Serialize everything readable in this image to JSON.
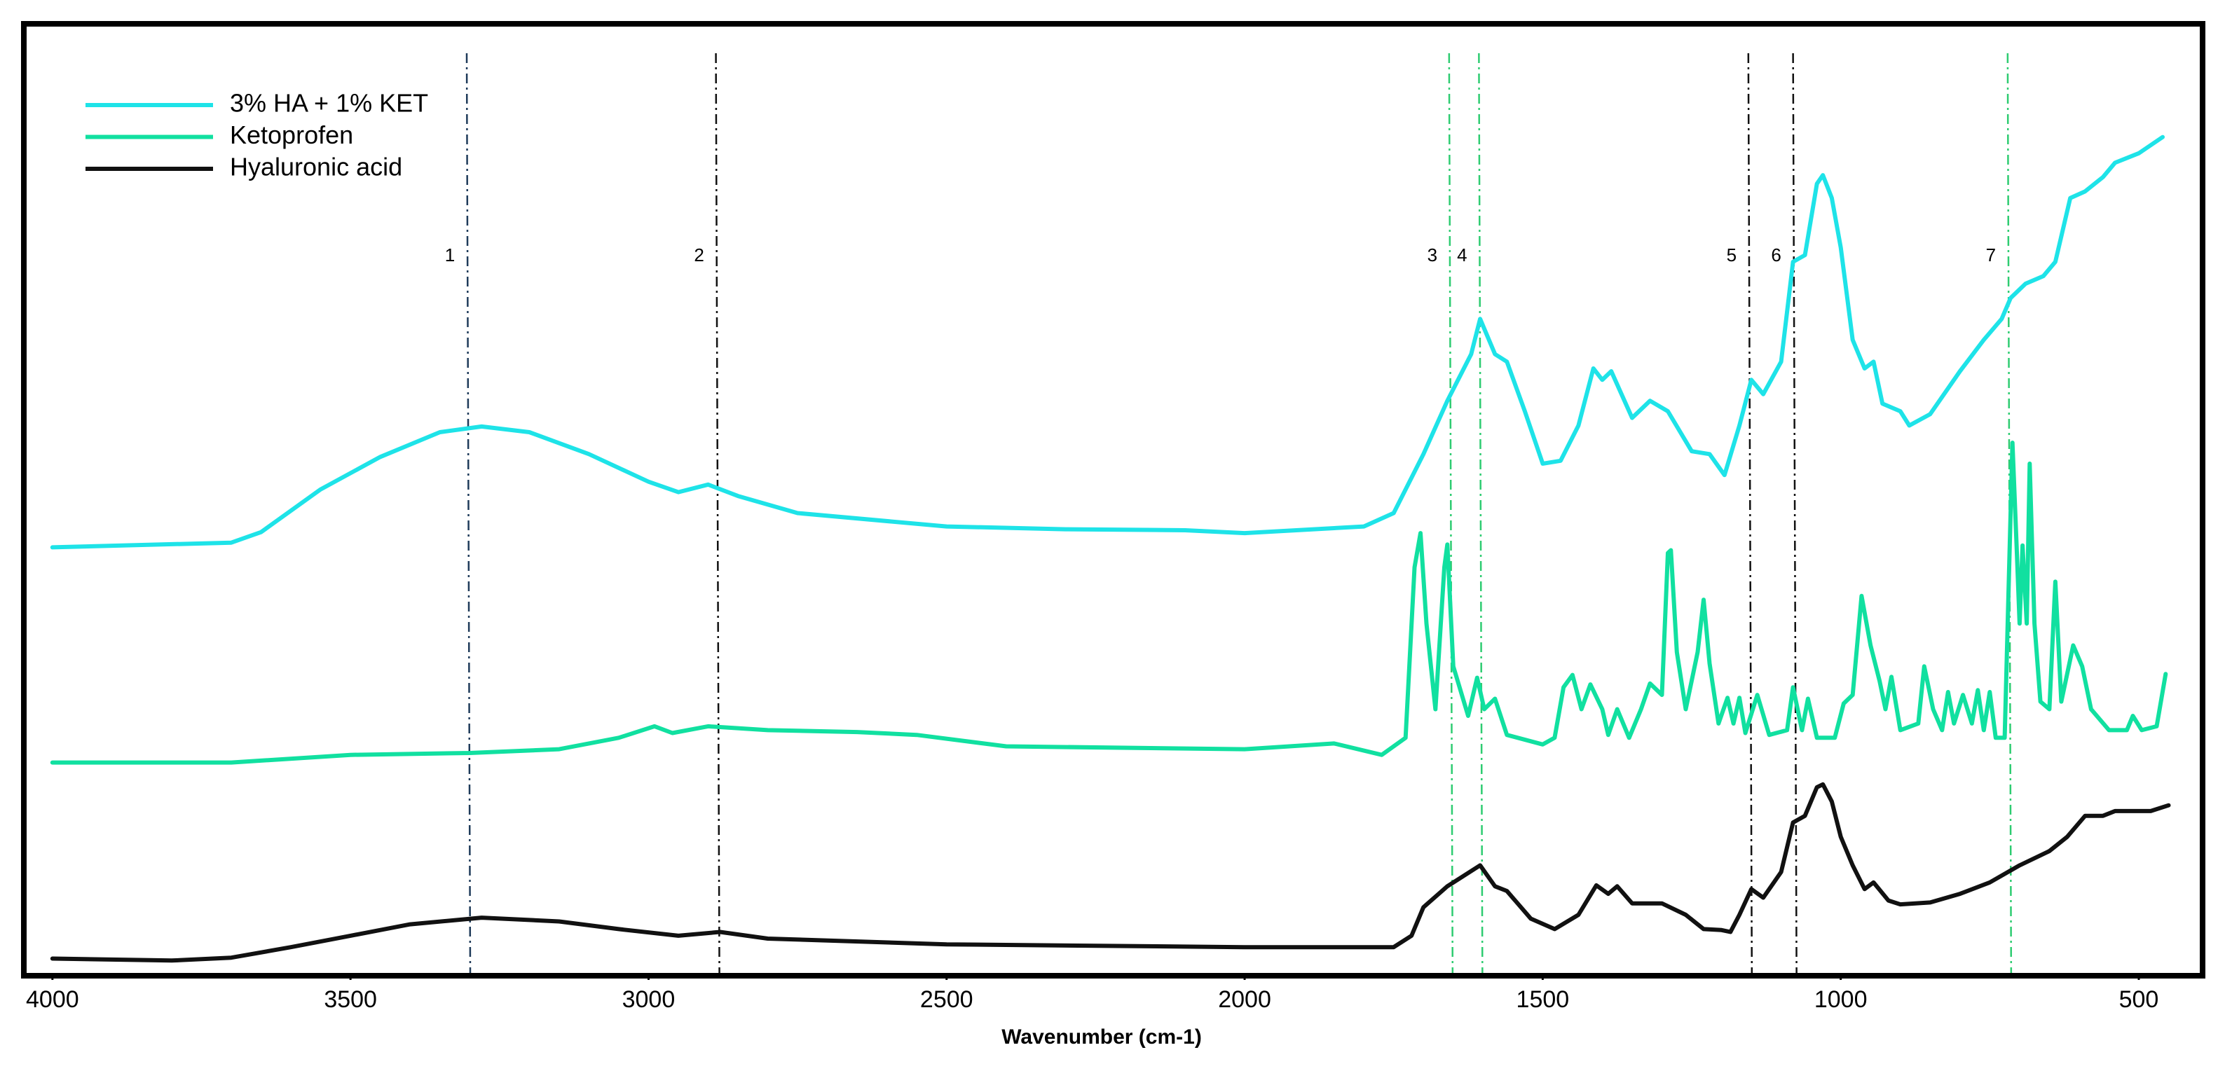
{
  "chart_data": {
    "type": "line",
    "x_label": "Wavenumber (cm-1)",
    "xlim": [
      4048,
      393
    ],
    "ylim": [
      0,
      100
    ],
    "xticks": [
      4000,
      3500,
      3000,
      2500,
      2000,
      1500,
      1000,
      500
    ],
    "grid": false,
    "legend": "upper left",
    "peak_lines": [
      {
        "label": "1",
        "x": 3305,
        "color": "#1f3b5a"
      },
      {
        "label": "2",
        "x": 2887,
        "color": "#111111"
      },
      {
        "label": "3",
        "x": 1657,
        "color": "#2ecc71"
      },
      {
        "label": "4",
        "x": 1607,
        "color": "#2ecc71"
      },
      {
        "label": "5",
        "x": 1155,
        "color": "#111111"
      },
      {
        "label": "6",
        "x": 1080,
        "color": "#111111"
      },
      {
        "label": "7",
        "x": 720,
        "color": "#2ecc71"
      }
    ],
    "series": [
      {
        "name": "3% HA + 1% KET",
        "color": "#1ee3e8",
        "x": [
          4000,
          3700,
          3650,
          3550,
          3450,
          3350,
          3280,
          3200,
          3100,
          3000,
          2950,
          2900,
          2850,
          2750,
          2500,
          2300,
          2100,
          2000,
          1800,
          1750,
          1700,
          1660,
          1620,
          1605,
          1580,
          1560,
          1530,
          1500,
          1470,
          1440,
          1415,
          1400,
          1385,
          1350,
          1320,
          1290,
          1250,
          1220,
          1195,
          1170,
          1150,
          1130,
          1100,
          1080,
          1060,
          1040,
          1030,
          1015,
          1000,
          980,
          960,
          945,
          930,
          900,
          885,
          850,
          800,
          760,
          730,
          715,
          690,
          660,
          640,
          615,
          590,
          560,
          540,
          500,
          460
        ],
        "values": [
          45.0,
          45.5,
          46.6,
          51.1,
          54.5,
          57.1,
          57.7,
          57.1,
          54.8,
          51.9,
          50.8,
          51.6,
          50.4,
          48.6,
          47.2,
          46.9,
          46.8,
          46.5,
          47.2,
          48.6,
          54.8,
          60.4,
          65.3,
          69.0,
          65.3,
          64.5,
          59.3,
          53.8,
          54.1,
          57.8,
          63.8,
          62.6,
          63.5,
          58.6,
          60.4,
          59.3,
          55.1,
          54.8,
          52.6,
          57.8,
          62.6,
          61.1,
          64.5,
          75.0,
          75.7,
          83.2,
          84.1,
          81.7,
          76.5,
          66.8,
          63.8,
          64.5,
          60.1,
          59.3,
          57.8,
          59.0,
          63.5,
          66.8,
          69.0,
          71.2,
          72.7,
          73.5,
          75.0,
          81.7,
          82.4,
          83.9,
          85.4,
          86.4,
          88.1
        ]
      },
      {
        "name": "Ketoprofen",
        "color": "#11e0a0",
        "x": [
          4000,
          3700,
          3500,
          3300,
          3150,
          3050,
          2990,
          2960,
          2900,
          2800,
          2650,
          2550,
          2400,
          2000,
          1850,
          1770,
          1730,
          1715,
          1705,
          1695,
          1680,
          1665,
          1660,
          1650,
          1625,
          1610,
          1598,
          1580,
          1560,
          1500,
          1480,
          1465,
          1450,
          1435,
          1420,
          1400,
          1390,
          1375,
          1355,
          1335,
          1320,
          1300,
          1290,
          1285,
          1275,
          1260,
          1240,
          1230,
          1220,
          1205,
          1190,
          1180,
          1170,
          1160,
          1140,
          1120,
          1090,
          1080,
          1065,
          1055,
          1040,
          1010,
          995,
          980,
          965,
          950,
          935,
          925,
          915,
          900,
          870,
          860,
          845,
          830,
          820,
          810,
          795,
          780,
          770,
          760,
          750,
          740,
          725,
          712,
          705,
          700,
          695,
          688,
          683,
          675,
          665,
          650,
          640,
          630,
          610,
          595,
          580,
          550,
          520,
          510,
          495,
          470,
          455
        ],
        "values": [
          22.4,
          22.4,
          23.2,
          23.4,
          23.8,
          25.0,
          26.2,
          25.5,
          26.2,
          25.8,
          25.6,
          25.3,
          24.1,
          23.8,
          24.4,
          23.2,
          25.0,
          42.9,
          46.5,
          37.0,
          28.0,
          42.9,
          45.3,
          32.5,
          27.3,
          31.3,
          28.0,
          29.1,
          25.3,
          24.3,
          25.0,
          30.3,
          31.6,
          28.0,
          30.6,
          28.0,
          25.3,
          28.0,
          25.0,
          28.0,
          30.7,
          29.5,
          44.4,
          44.7,
          34.0,
          28.0,
          34.0,
          39.5,
          32.8,
          26.5,
          29.2,
          26.5,
          29.2,
          25.5,
          29.5,
          25.3,
          25.8,
          30.3,
          25.8,
          29.1,
          25.0,
          25.0,
          28.6,
          29.5,
          39.9,
          34.7,
          31.0,
          28.0,
          31.4,
          25.8,
          26.5,
          32.5,
          28.0,
          25.8,
          29.8,
          26.5,
          29.5,
          26.5,
          30.0,
          25.8,
          29.8,
          25.0,
          25.0,
          56.0,
          45.2,
          37.0,
          45.2,
          37.0,
          53.8,
          37.0,
          28.8,
          28.0,
          41.4,
          28.8,
          34.7,
          32.5,
          28.0,
          25.8,
          25.8,
          27.3,
          25.8,
          26.2,
          31.7
        ]
      },
      {
        "name": "Hyaluronic acid",
        "color": "#111111",
        "x": [
          4000,
          3800,
          3700,
          3600,
          3500,
          3400,
          3280,
          3150,
          3050,
          2950,
          2880,
          2800,
          2500,
          2000,
          1750,
          1720,
          1700,
          1660,
          1605,
          1580,
          1560,
          1520,
          1480,
          1440,
          1410,
          1390,
          1375,
          1350,
          1300,
          1260,
          1230,
          1200,
          1185,
          1170,
          1150,
          1130,
          1100,
          1080,
          1060,
          1040,
          1030,
          1015,
          1000,
          980,
          960,
          945,
          920,
          900,
          850,
          800,
          750,
          700,
          650,
          620,
          590,
          560,
          540,
          480,
          450
        ],
        "values": [
          1.8,
          1.6,
          1.9,
          3.0,
          4.2,
          5.4,
          6.1,
          5.7,
          4.9,
          4.2,
          4.6,
          3.9,
          3.3,
          3.0,
          3.0,
          4.2,
          7.2,
          9.4,
          11.6,
          9.4,
          8.9,
          6.0,
          4.9,
          6.4,
          9.5,
          8.6,
          9.4,
          7.6,
          7.6,
          6.4,
          4.9,
          4.8,
          4.6,
          6.4,
          9.1,
          8.2,
          10.9,
          16.1,
          16.8,
          19.8,
          20.1,
          18.3,
          14.6,
          11.6,
          9.1,
          9.8,
          7.9,
          7.5,
          7.7,
          8.6,
          9.8,
          11.6,
          13.1,
          14.6,
          16.8,
          16.8,
          17.3,
          17.3,
          17.9
        ]
      }
    ]
  }
}
